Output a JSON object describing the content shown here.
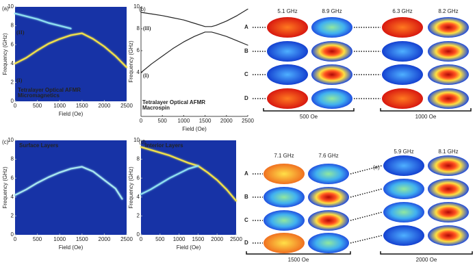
{
  "chart_data": [
    {
      "type": "line",
      "label": "(a)",
      "background": "#1733a6",
      "xlabel": "Field (Oe)",
      "ylabel": "Frequency (GHz)",
      "annotations": [
        "(II)",
        "(I)"
      ],
      "note": [
        "Tetralayer Optical AFMR",
        "Micromagnetics"
      ],
      "xlim": [
        0,
        2500
      ],
      "ylim": [
        0,
        10
      ],
      "xticks": [
        0,
        500,
        1000,
        1500,
        2000,
        2500
      ],
      "yticks": [
        0,
        2,
        4,
        6,
        8,
        10
      ],
      "series": [
        {
          "color": "#f2e24a",
          "x": [
            0,
            250,
            500,
            750,
            1000,
            1250,
            1500,
            1750,
            2000,
            2250,
            2500
          ],
          "values": [
            4.0,
            4.6,
            5.4,
            6.1,
            6.6,
            7.0,
            7.2,
            6.6,
            5.8,
            4.8,
            3.6
          ]
        },
        {
          "color": "#8fe0f0",
          "x": [
            0,
            250,
            500,
            750,
            1000,
            1250
          ],
          "values": [
            9.3,
            9.0,
            8.7,
            8.3,
            8.0,
            7.7
          ]
        }
      ]
    },
    {
      "type": "line",
      "label": "(b)",
      "background": "#ffffff",
      "xlabel": "Field (Oe)",
      "ylabel": "Frequency (GHz)",
      "annotations": [
        "(II)",
        "(I)"
      ],
      "note": [
        "Tetralayer Optical AFMR",
        "Macrospin"
      ],
      "xlim": [
        0,
        2500
      ],
      "ylim": [
        0,
        10
      ],
      "xticks": [
        0,
        500,
        1000,
        1500,
        2000,
        2500
      ],
      "yticks": [
        4,
        6,
        8,
        10
      ],
      "series": [
        {
          "color": "#222222",
          "x": [
            0,
            250,
            500,
            750,
            1000,
            1250,
            1500,
            1650,
            1750,
            2000,
            2250,
            2500
          ],
          "values": [
            9.5,
            9.35,
            9.2,
            9.0,
            8.8,
            8.5,
            8.2,
            8.2,
            8.3,
            8.7,
            9.2,
            9.8
          ]
        },
        {
          "color": "#222222",
          "x": [
            0,
            250,
            500,
            750,
            1000,
            1250,
            1500,
            1650,
            1750,
            2000,
            2250,
            2500
          ],
          "values": [
            4.0,
            4.8,
            5.5,
            6.2,
            6.8,
            7.3,
            7.7,
            7.7,
            7.6,
            7.3,
            6.9,
            6.5
          ]
        }
      ]
    },
    {
      "type": "line",
      "label": "(c)",
      "background": "#1733a6",
      "xlabel": "Field (Oe)",
      "ylabel": "Frequency (GHz)",
      "note": [
        "Surface Layers"
      ],
      "xlim": [
        0,
        2500
      ],
      "ylim": [
        0,
        10
      ],
      "xticks": [
        0,
        500,
        1000,
        1500,
        2000,
        2500
      ],
      "yticks": [
        0,
        2,
        4,
        6,
        8,
        10
      ],
      "series": [
        {
          "color": "#a8e8f0",
          "x": [
            0,
            250,
            500,
            750,
            1000,
            1250,
            1500,
            1750,
            2000,
            2250,
            2400
          ],
          "values": [
            4.2,
            4.8,
            5.5,
            6.1,
            6.6,
            7.0,
            7.2,
            6.7,
            5.8,
            4.9,
            3.8
          ]
        }
      ]
    },
    {
      "type": "line",
      "label": "(d)",
      "background": "#1733a6",
      "xlabel": "Field (Oe)",
      "ylabel": "Frequency (GHz)",
      "note": [
        "Interior Layers"
      ],
      "xlim": [
        0,
        2500
      ],
      "ylim": [
        0,
        10
      ],
      "xticks": [
        0,
        500,
        1000,
        1500,
        2000,
        2500
      ],
      "yticks": [
        0,
        2,
        4,
        6,
        8,
        10
      ],
      "series": [
        {
          "color": "#f2e24a",
          "x": [
            0,
            250,
            500,
            750,
            1000,
            1250,
            1500,
            1750,
            2000,
            2250,
            2500
          ],
          "values": [
            9.3,
            9.0,
            8.7,
            8.4,
            8.0,
            7.6,
            7.3,
            6.6,
            5.8,
            4.8,
            3.6
          ]
        },
        {
          "color": "#8fe0f0",
          "x": [
            0,
            250,
            500,
            750,
            1000,
            1250,
            1500
          ],
          "values": [
            4.3,
            4.8,
            5.4,
            6.0,
            6.5,
            7.0,
            7.3
          ]
        }
      ]
    }
  ],
  "modes": {
    "label": "(e)",
    "rows": [
      "A",
      "B",
      "C",
      "D"
    ],
    "groups": [
      {
        "freqs": [
          "5.1 GHz",
          "8.9 GHz",
          "6.3 GHz",
          "8.2 GHz"
        ],
        "fields": [
          "500 Oe",
          "1000 Oe"
        ]
      },
      {
        "freqs": [
          "7.1 GHz",
          "7.6 GHz",
          "5.9 GHz",
          "8.1 GHz"
        ],
        "fields": [
          "1500 Oe",
          "2000 Oe"
        ]
      }
    ]
  }
}
